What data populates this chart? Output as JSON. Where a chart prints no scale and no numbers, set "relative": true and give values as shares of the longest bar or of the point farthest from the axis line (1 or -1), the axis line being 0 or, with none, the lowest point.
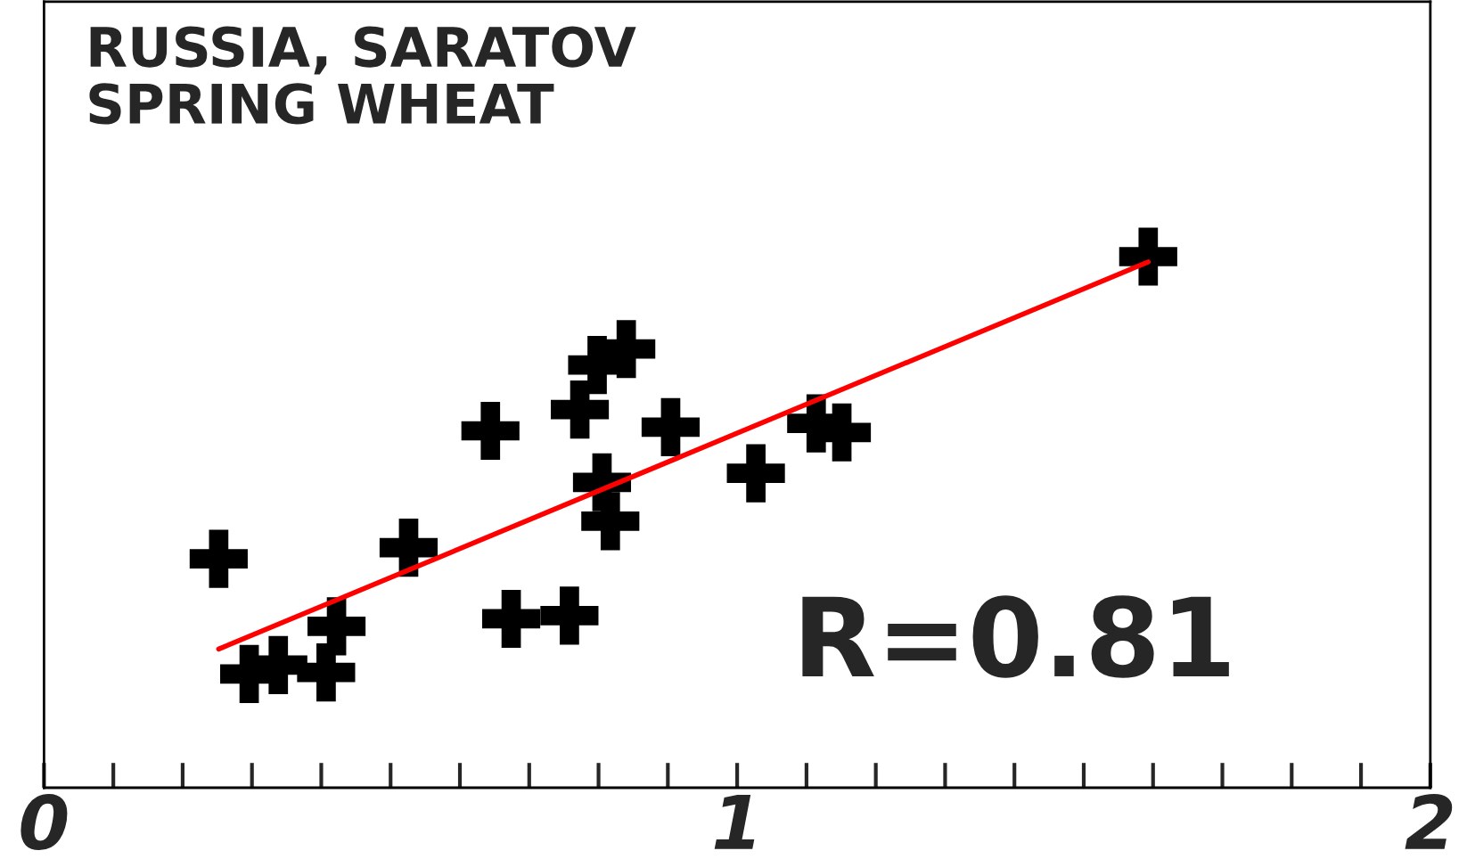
{
  "chart_data": {
    "type": "scatter",
    "title": "RUSSIA, SARATOV\nSPRING WHEAT",
    "relative": true,
    "marker": "cross",
    "grid": false,
    "legend": false,
    "tick_labels": "x",
    "xlim": [
      0,
      2
    ],
    "xticks": [
      0,
      {
        "value": 0.1,
        "label": null
      },
      {
        "value": 0.2,
        "label": null
      },
      {
        "value": 0.3,
        "label": null
      },
      {
        "value": 0.4,
        "label": null
      },
      {
        "value": 0.5,
        "label": null
      },
      {
        "value": 0.6,
        "label": null
      },
      {
        "value": 0.7,
        "label": null
      },
      {
        "value": 0.8,
        "label": null
      },
      {
        "value": 0.9,
        "label": null
      },
      1,
      {
        "value": 1.1,
        "label": null
      },
      {
        "value": 1.2,
        "label": null
      },
      {
        "value": 1.3,
        "label": null
      },
      {
        "value": 1.4,
        "label": null
      },
      {
        "value": 1.5,
        "label": null
      },
      {
        "value": 1.6,
        "label": null
      },
      {
        "value": 1.7,
        "label": null
      },
      {
        "value": 1.8,
        "label": null
      },
      {
        "value": 1.9,
        "label": null
      },
      2
    ],
    "annotations": [
      "R=0.81"
    ],
    "series": [
      {
        "color": "#000000",
        "x": [
          0.252,
          0.296,
          0.338,
          0.407,
          0.422,
          0.526,
          0.644,
          0.674,
          0.758,
          0.773,
          0.798,
          0.84,
          0.805,
          0.817,
          0.904,
          1.027,
          1.114,
          1.151,
          1.593
        ],
        "values": [
          0.431,
          0.214,
          0.231,
          0.217,
          0.304,
          0.452,
          0.672,
          0.318,
          0.324,
          0.712,
          0.796,
          0.826,
          0.575,
          0.502,
          0.679,
          0.592,
          0.686,
          0.669,
          1.0
        ]
      },
      {
        "type": "line",
        "color": "#ff0000",
        "marker": "none",
        "x": [
          0.252,
          1.593
        ],
        "values": [
          0.261,
          0.99
        ]
      }
    ]
  }
}
